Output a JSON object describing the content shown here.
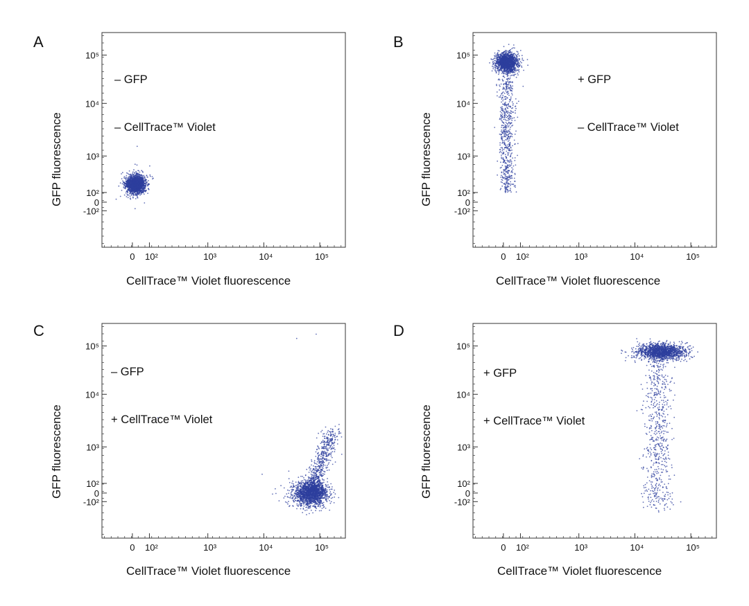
{
  "colors": {
    "dots": "#2e3f9e",
    "axis": "#333333"
  },
  "chart_data": [
    {
      "panel_letter": "A",
      "type": "scatter",
      "legend_lines": [
        "– GFP",
        "– CellTrace™ Violet"
      ],
      "xlabel": "CellTrace™ Violet fluorescence",
      "ylabel": "GFP fluorescence",
      "x_scale": "biexponential",
      "y_scale": "biexponential",
      "x_ticks": [
        "0",
        "10²",
        "10³",
        "10⁴",
        "10⁵"
      ],
      "y_ticks": [
        "10⁵",
        "10⁴",
        "10³",
        "10²",
        "0",
        "-10²"
      ],
      "clusters": [
        {
          "x_center": 20,
          "y_center": 150,
          "note": "dense population near origin"
        }
      ]
    },
    {
      "panel_letter": "B",
      "type": "scatter",
      "legend_lines": [
        "+ GFP",
        "– CellTrace™ Violet"
      ],
      "xlabel": "CellTrace™ Violet fluorescence",
      "ylabel": "GFP fluorescence",
      "x_scale": "biexponential",
      "y_scale": "biexponential",
      "x_ticks": [
        "0",
        "10²",
        "10³",
        "10⁴",
        "10⁵"
      ],
      "y_ticks": [
        "10⁵",
        "10⁴",
        "10³",
        "10²",
        "0",
        "-10²"
      ],
      "clusters": [
        {
          "x_center": 20,
          "y_center": 70000,
          "note": "dense population, streak down to ~10^2"
        }
      ]
    },
    {
      "panel_letter": "C",
      "type": "scatter",
      "legend_lines": [
        "– GFP",
        "+ CellTrace™ Violet"
      ],
      "xlabel": "CellTrace™ Violet fluorescence",
      "ylabel": "GFP fluorescence",
      "x_scale": "biexponential",
      "y_scale": "biexponential",
      "x_ticks": [
        "0",
        "10²",
        "10³",
        "10⁴",
        "10⁵"
      ],
      "y_ticks": [
        "10⁵",
        "10⁴",
        "10³",
        "10²",
        "0",
        "-10²"
      ],
      "clusters": [
        {
          "x_center": 70000,
          "y_center": 0,
          "note": "dense population, diagonal tail to ~10^3"
        }
      ]
    },
    {
      "panel_letter": "D",
      "type": "scatter",
      "legend_lines": [
        "+ GFP",
        "+ CellTrace™ Violet"
      ],
      "xlabel": "CellTrace™ Violet fluorescence",
      "ylabel": "GFP fluorescence",
      "x_scale": "biexponential",
      "y_scale": "biexponential",
      "x_ticks": [
        "0",
        "10²",
        "10³",
        "10⁴",
        "10⁵"
      ],
      "y_ticks": [
        "10⁵",
        "10⁴",
        "10³",
        "10²",
        "0",
        "-10²"
      ],
      "clusters": [
        {
          "x_center": 30000,
          "y_center": 75000,
          "note": "dense population, streak down to ~0"
        }
      ]
    }
  ]
}
